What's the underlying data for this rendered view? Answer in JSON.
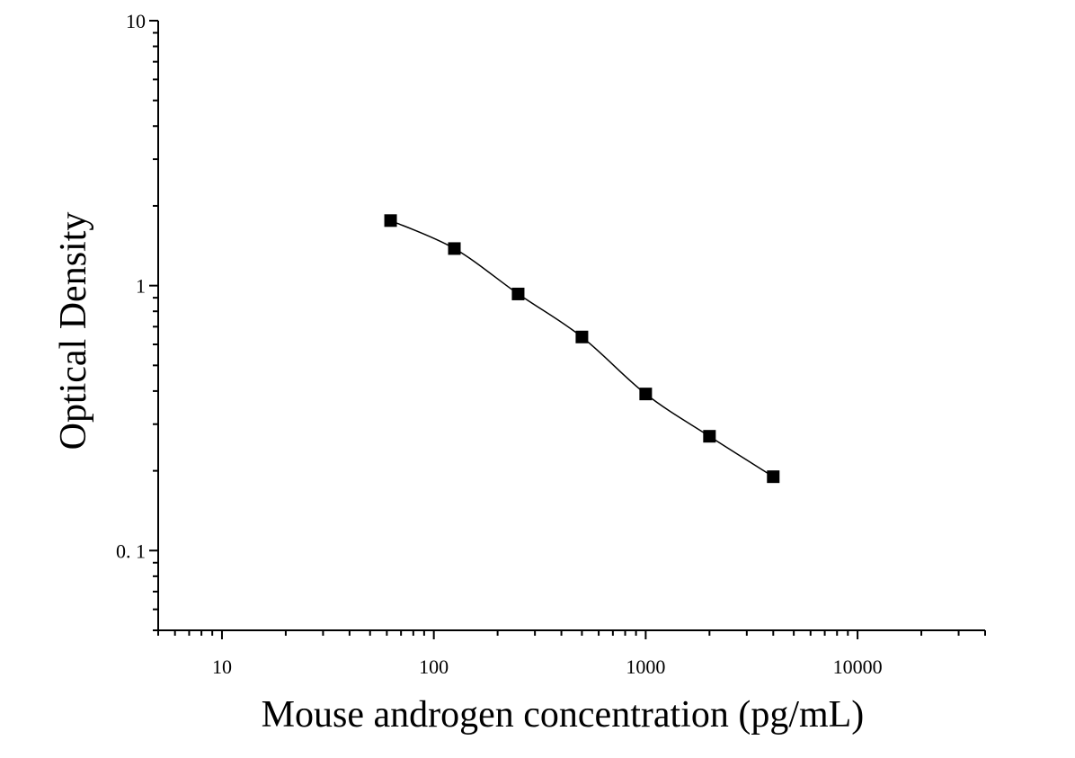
{
  "chart_data": {
    "type": "scatter",
    "title": "",
    "xlabel": "Mouse androgen concentration (pg/mL)",
    "ylabel": "Optical Density",
    "xscale": "log",
    "yscale": "log",
    "xlim": [
      5,
      40000
    ],
    "ylim": [
      0.05,
      10
    ],
    "x_ticks": [
      {
        "value": 10,
        "label": "10"
      },
      {
        "value": 100,
        "label": "100"
      },
      {
        "value": 1000,
        "label": "1000"
      },
      {
        "value": 10000,
        "label": "10000"
      }
    ],
    "y_ticks": [
      {
        "value": 0.1,
        "label": "0. 1"
      },
      {
        "value": 1,
        "label": "1"
      },
      {
        "value": 10,
        "label": "10"
      }
    ],
    "grid": false,
    "legend": "none",
    "series": [
      {
        "x": [
          62.5,
          125,
          250,
          500,
          1000,
          2000,
          4000
        ],
        "y": [
          1.76,
          1.38,
          0.93,
          0.64,
          0.39,
          0.27,
          0.19
        ],
        "marker": "square",
        "fit_line": true,
        "color": "#000000"
      }
    ]
  }
}
